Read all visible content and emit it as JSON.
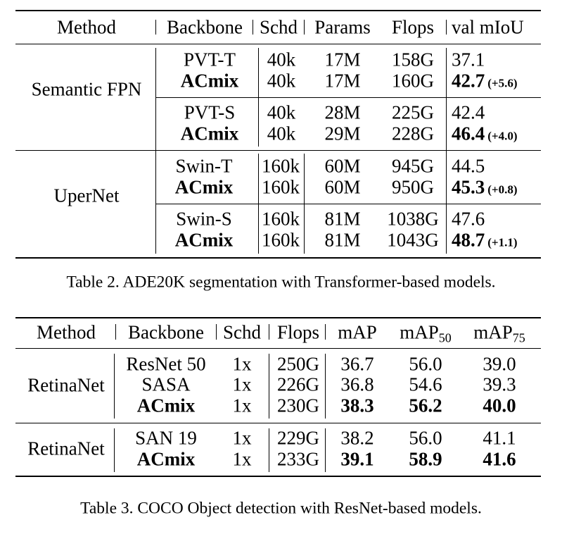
{
  "table2": {
    "headers": {
      "method": "Method",
      "backbone": "Backbone",
      "schd": "Schd",
      "params": "Params",
      "flops": "Flops",
      "miou": "val mIoU"
    },
    "groups": [
      {
        "method": "Semantic FPN",
        "pairs": [
          {
            "base": {
              "backbone": "PVT-T",
              "schd": "40k",
              "params": "17M",
              "flops": "158G",
              "miou": "37.1"
            },
            "acmix": {
              "backbone": "ACmix",
              "schd": "40k",
              "params": "17M",
              "flops": "160G",
              "miou": "42.7",
              "gain": "(+5.6)"
            }
          },
          {
            "base": {
              "backbone": "PVT-S",
              "schd": "40k",
              "params": "28M",
              "flops": "225G",
              "miou": "42.4"
            },
            "acmix": {
              "backbone": "ACmix",
              "schd": "40k",
              "params": "29M",
              "flops": "228G",
              "miou": "46.4",
              "gain": "(+4.0)"
            }
          }
        ]
      },
      {
        "method": "UperNet",
        "pairs": [
          {
            "base": {
              "backbone": "Swin-T",
              "schd": "160k",
              "params": "60M",
              "flops": "945G",
              "miou": "44.5"
            },
            "acmix": {
              "backbone": "ACmix",
              "schd": "160k",
              "params": "60M",
              "flops": "950G",
              "miou": "45.3",
              "gain": "(+0.8)"
            }
          },
          {
            "base": {
              "backbone": "Swin-S",
              "schd": "160k",
              "params": "81M",
              "flops": "1038G",
              "miou": "47.6"
            },
            "acmix": {
              "backbone": "ACmix",
              "schd": "160k",
              "params": "81M",
              "flops": "1043G",
              "miou": "48.7",
              "gain": "(+1.1)"
            }
          }
        ]
      }
    ],
    "caption": "Table 2. ADE20K segmentation with Transformer-based models."
  },
  "table3": {
    "headers": {
      "method": "Method",
      "backbone": "Backbone",
      "schd": "Schd",
      "flops": "Flops",
      "map": "mAP",
      "map50": "mAP",
      "map50_sub": "50",
      "map75": "mAP",
      "map75_sub": "75"
    },
    "groups": [
      {
        "method": "RetinaNet",
        "rows": [
          {
            "backbone": "ResNet 50",
            "schd": "1x",
            "flops": "250G",
            "map": "36.7",
            "map50": "56.0",
            "map75": "39.0"
          },
          {
            "backbone": "SASA",
            "schd": "1x",
            "flops": "226G",
            "map": "36.8",
            "map50": "54.6",
            "map75": "39.3"
          },
          {
            "backbone": "ACmix",
            "schd": "1x",
            "flops": "230G",
            "map": "38.3",
            "map50": "56.2",
            "map75": "40.0"
          }
        ]
      },
      {
        "method": "RetinaNet",
        "rows": [
          {
            "backbone": "SAN 19",
            "schd": "1x",
            "flops": "229G",
            "map": "38.2",
            "map50": "56.0",
            "map75": "41.1"
          },
          {
            "backbone": "ACmix",
            "schd": "1x",
            "flops": "233G",
            "map": "39.1",
            "map50": "58.9",
            "map75": "41.6"
          }
        ]
      }
    ],
    "caption": "Table 3. COCO Object detection with ResNet-based models."
  }
}
